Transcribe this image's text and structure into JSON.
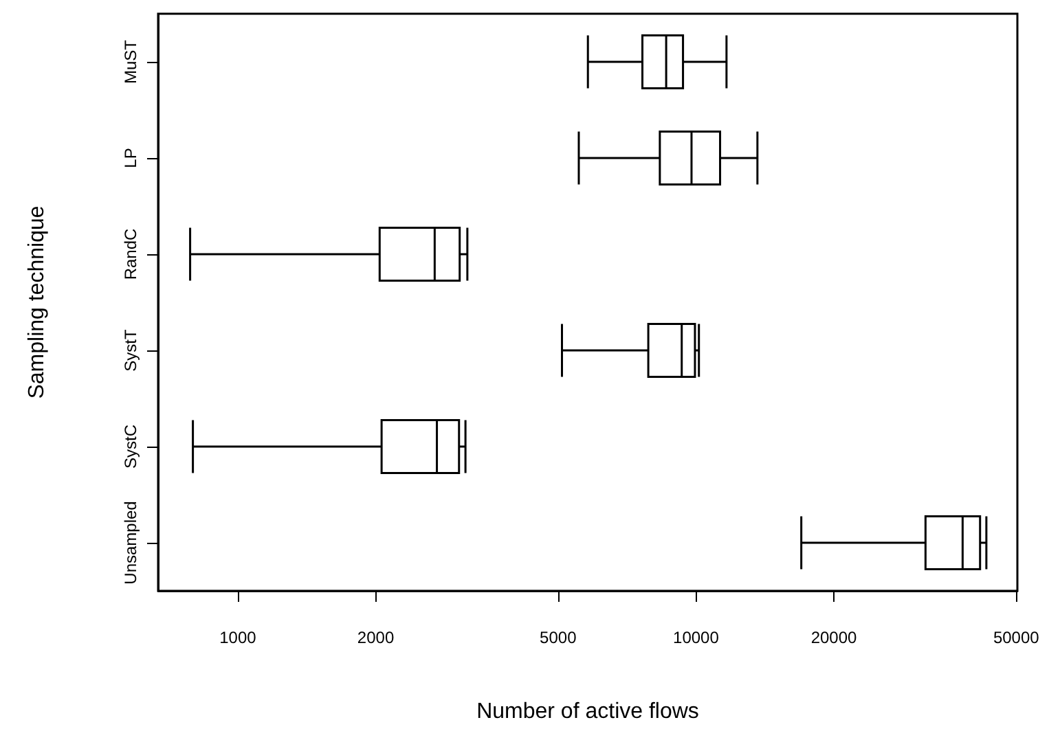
{
  "chart_data": {
    "type": "box",
    "orientation": "horizontal",
    "log": "x",
    "xlabel": "Number of active flows",
    "ylabel": "Sampling technique",
    "categories": [
      "MuST",
      "LP",
      "RandC",
      "SystT",
      "SystC",
      "Unsampled"
    ],
    "boxes": [
      {
        "low": 5810,
        "q1": 7640,
        "median": 8610,
        "q3": 9370,
        "high": 11660
      },
      {
        "low": 5550,
        "q1": 8340,
        "median": 9780,
        "q3": 11290,
        "high": 13620
      },
      {
        "low": 787,
        "q1": 2040,
        "median": 2690,
        "q3": 3050,
        "high": 3170
      },
      {
        "low": 5100,
        "q1": 7870,
        "median": 9310,
        "q3": 9950,
        "high": 10150
      },
      {
        "low": 798,
        "q1": 2060,
        "median": 2720,
        "q3": 3040,
        "high": 3140
      },
      {
        "low": 16980,
        "q1": 31700,
        "median": 38200,
        "q3": 41700,
        "high": 43040
      }
    ],
    "color": "#000000",
    "xlim": [
      670,
      50300
    ],
    "xticks": [
      1000,
      2000,
      5000,
      10000,
      20000,
      50000
    ],
    "grid": false
  }
}
